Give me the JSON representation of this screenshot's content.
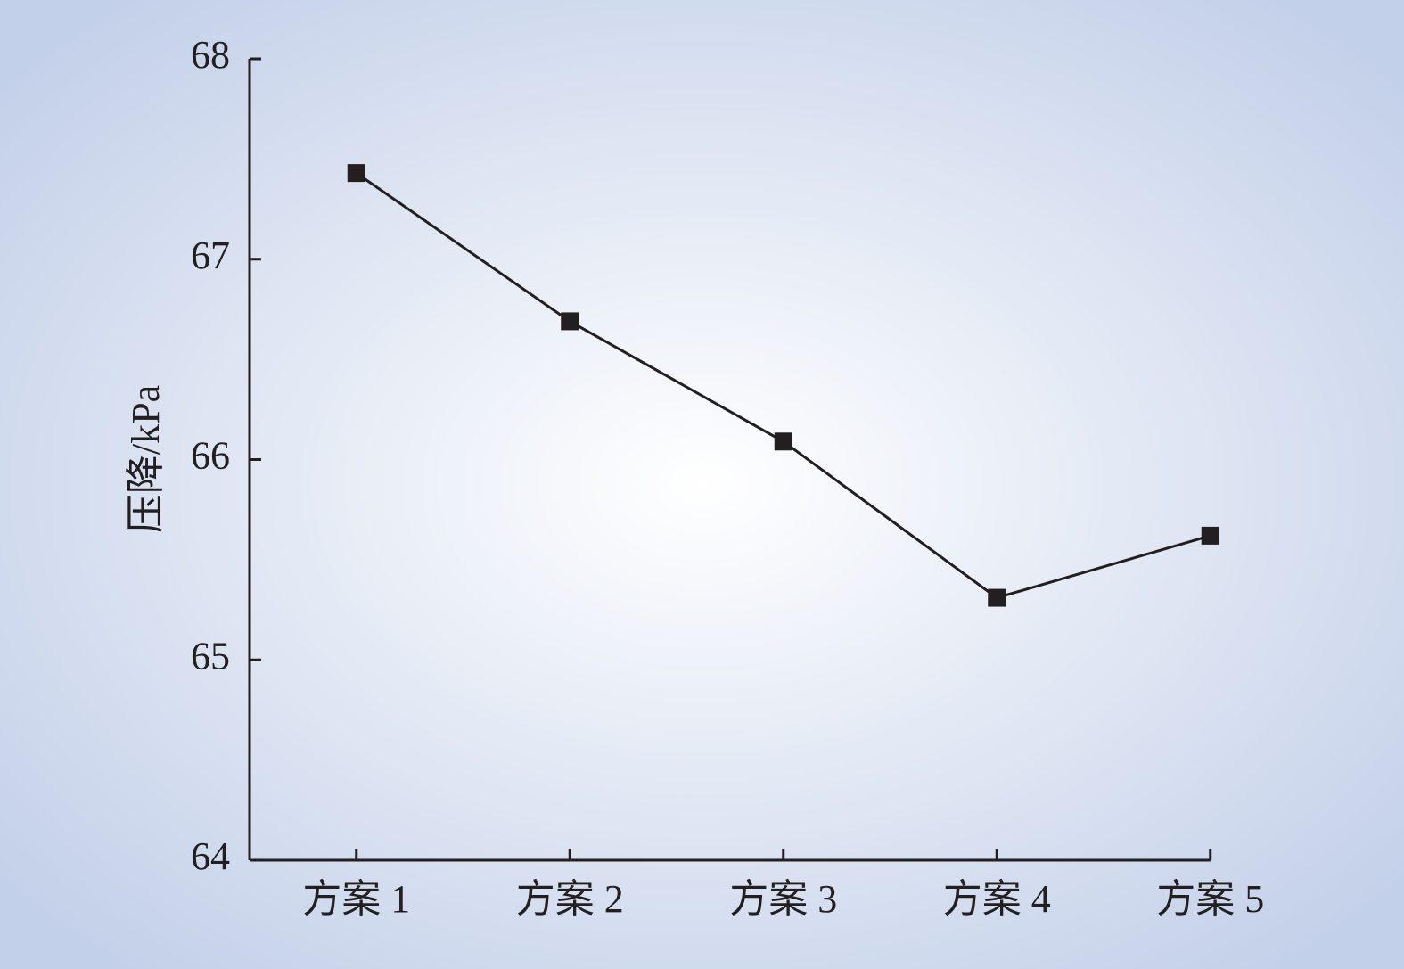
{
  "chart_data": {
    "type": "line",
    "y_label": "压降/kPa",
    "categories": [
      "方案 1",
      "方案 2",
      "方案 3",
      "方案 4",
      "方案 5"
    ],
    "series": [
      {
        "name": null,
        "color": "#231f20",
        "values": [
          67.43,
          66.69,
          66.09,
          65.31,
          65.62
        ]
      }
    ],
    "ylim": [
      64,
      68
    ],
    "yticks": [
      64,
      65,
      66,
      67,
      68
    ],
    "grid": false
  }
}
